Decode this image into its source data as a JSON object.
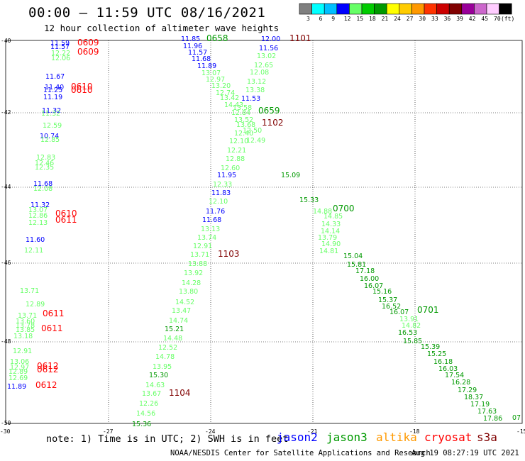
{
  "header": {
    "title": "00:00 – 11:59 UTC 08/16/2021",
    "subtitle": "12 hour collection of altimeter wave heights"
  },
  "colorbar": {
    "labels": [
      "3",
      "6",
      "9",
      "12",
      "15",
      "18",
      "21",
      "24",
      "27",
      "30",
      "33",
      "36",
      "39",
      "42",
      "45",
      "70",
      "(ft)"
    ],
    "colors": [
      "#7f7f7f",
      "#00ffff",
      "#00bfff",
      "#0000ff",
      "#66ff66",
      "#00cc00",
      "#009900",
      "#ffff00",
      "#ffcc00",
      "#ff9900",
      "#ff3300",
      "#cc0000",
      "#800000",
      "#990099",
      "#cc66cc",
      "#ffccff",
      "#000000"
    ]
  },
  "map": {
    "lat_labels": [
      "-40",
      "-42",
      "-44",
      "-46",
      "-48",
      "-50"
    ],
    "lon_labels": [
      "-30",
      "-27",
      "-24",
      "-21",
      "-18",
      "-15"
    ]
  },
  "observations": [
    {
      "text": "11.59",
      "color": "#0000ff"
    },
    {
      "text": "11.57",
      "color": "#0000ff"
    },
    {
      "text": "12.22",
      "color": "#66ff66"
    },
    {
      "text": "12.06",
      "color": "#66ff66"
    },
    {
      "text": "0609",
      "color": "#ff0000"
    },
    {
      "text": "0609",
      "color": "#ff0000"
    },
    {
      "text": "11.67",
      "color": "#0000ff"
    },
    {
      "text": "11.40",
      "color": "#0000ff"
    },
    {
      "text": "11.25",
      "color": "#0000ff"
    },
    {
      "text": "11.19",
      "color": "#0000ff"
    },
    {
      "text": "0610",
      "color": "#ff0000"
    },
    {
      "text": "0610",
      "color": "#ff0000"
    },
    {
      "text": "11.32",
      "color": "#0000ff"
    },
    {
      "text": "11.32",
      "color": "#66ff66"
    },
    {
      "text": "12.59",
      "color": "#66ff66"
    },
    {
      "text": "10.74",
      "color": "#0000ff"
    },
    {
      "text": "12.85",
      "color": "#66ff66"
    },
    {
      "text": "12.83",
      "color": "#66ff66"
    },
    {
      "text": "12.46",
      "color": "#66ff66"
    },
    {
      "text": "12.35",
      "color": "#66ff66"
    },
    {
      "text": "11.68",
      "color": "#0000ff"
    },
    {
      "text": "12.08",
      "color": "#66ff66"
    },
    {
      "text": "11.32",
      "color": "#0000ff"
    },
    {
      "text": "13.07",
      "color": "#66ff66"
    },
    {
      "text": "12.86",
      "color": "#66ff66"
    },
    {
      "text": "12.13",
      "color": "#66ff66"
    },
    {
      "text": "0610",
      "color": "#ff0000"
    },
    {
      "text": "0611",
      "color": "#ff0000"
    },
    {
      "text": "11.60",
      "color": "#0000ff"
    },
    {
      "text": "12.11",
      "color": "#66ff66"
    },
    {
      "text": "13.71",
      "color": "#66ff66"
    },
    {
      "text": "12.89",
      "color": "#66ff66"
    },
    {
      "text": "13.71",
      "color": "#66ff66"
    },
    {
      "text": "13.60",
      "color": "#66ff66"
    },
    {
      "text": "13.78",
      "color": "#66ff66"
    },
    {
      "text": "13.85",
      "color": "#66ff66"
    },
    {
      "text": "13.18",
      "color": "#66ff66"
    },
    {
      "text": "0611",
      "color": "#ff0000"
    },
    {
      "text": "0611",
      "color": "#ff0000"
    },
    {
      "text": "12.91",
      "color": "#66ff66"
    },
    {
      "text": "13.06",
      "color": "#66ff66"
    },
    {
      "text": "12.97",
      "color": "#66ff66"
    },
    {
      "text": "12.89",
      "color": "#66ff66"
    },
    {
      "text": "12.69",
      "color": "#66ff66"
    },
    {
      "text": "0612",
      "color": "#ff0000"
    },
    {
      "text": "0612",
      "color": "#ff0000"
    },
    {
      "text": "11.89",
      "color": "#0000ff"
    },
    {
      "text": "0612",
      "color": "#ff0000"
    },
    {
      "text": "11.85",
      "color": "#0000ff"
    },
    {
      "text": "0658",
      "color": "#009900"
    },
    {
      "text": "11.96",
      "color": "#0000ff"
    },
    {
      "text": "11.57",
      "color": "#0000ff"
    },
    {
      "text": "11.68",
      "color": "#0000ff"
    },
    {
      "text": "11.89",
      "color": "#0000ff"
    },
    {
      "text": "13.07",
      "color": "#66ff66"
    },
    {
      "text": "12.97",
      "color": "#66ff66"
    },
    {
      "text": "13.20",
      "color": "#66ff66"
    },
    {
      "text": "12.74",
      "color": "#66ff66"
    },
    {
      "text": "13.42",
      "color": "#66ff66"
    },
    {
      "text": "14.43",
      "color": "#66ff66"
    },
    {
      "text": "12.00",
      "color": "#0000ff"
    },
    {
      "text": "1101",
      "color": "#800000"
    },
    {
      "text": "11.56",
      "color": "#0000ff"
    },
    {
      "text": "13.02",
      "color": "#66ff66"
    },
    {
      "text": "12.65",
      "color": "#66ff66"
    },
    {
      "text": "12.08",
      "color": "#66ff66"
    },
    {
      "text": "13.12",
      "color": "#66ff66"
    },
    {
      "text": "13.38",
      "color": "#66ff66"
    },
    {
      "text": "11.53",
      "color": "#0000ff"
    },
    {
      "text": "13.58",
      "color": "#66ff66"
    },
    {
      "text": "12.84",
      "color": "#66ff66"
    },
    {
      "text": "13.52",
      "color": "#66ff66"
    },
    {
      "text": "0659",
      "color": "#009900"
    },
    {
      "text": "13.68",
      "color": "#66ff66"
    },
    {
      "text": "1102",
      "color": "#800000"
    },
    {
      "text": "12.40",
      "color": "#66ff66"
    },
    {
      "text": "12.50",
      "color": "#66ff66"
    },
    {
      "text": "12.10",
      "color": "#66ff66"
    },
    {
      "text": "12.49",
      "color": "#66ff66"
    },
    {
      "text": "12.21",
      "color": "#66ff66"
    },
    {
      "text": "12.88",
      "color": "#66ff66"
    },
    {
      "text": "12.60",
      "color": "#66ff66"
    },
    {
      "text": "11.95",
      "color": "#0000ff"
    },
    {
      "text": "12.33",
      "color": "#66ff66"
    },
    {
      "text": "11.83",
      "color": "#0000ff"
    },
    {
      "text": "12.10",
      "color": "#66ff66"
    },
    {
      "text": "11.76",
      "color": "#0000ff"
    },
    {
      "text": "11.68",
      "color": "#0000ff"
    },
    {
      "text": "13.13",
      "color": "#66ff66"
    },
    {
      "text": "13.74",
      "color": "#66ff66"
    },
    {
      "text": "12.91",
      "color": "#66ff66"
    },
    {
      "text": "13.71",
      "color": "#66ff66"
    },
    {
      "text": "1103",
      "color": "#800000"
    },
    {
      "text": "13.88",
      "color": "#66ff66"
    },
    {
      "text": "13.92",
      "color": "#66ff66"
    },
    {
      "text": "14.28",
      "color": "#66ff66"
    },
    {
      "text": "13.80",
      "color": "#66ff66"
    },
    {
      "text": "14.52",
      "color": "#66ff66"
    },
    {
      "text": "13.47",
      "color": "#66ff66"
    },
    {
      "text": "14.74",
      "color": "#66ff66"
    },
    {
      "text": "15.21",
      "color": "#009900"
    },
    {
      "text": "14.48",
      "color": "#66ff66"
    },
    {
      "text": "12.52",
      "color": "#66ff66"
    },
    {
      "text": "14.78",
      "color": "#66ff66"
    },
    {
      "text": "13.95",
      "color": "#66ff66"
    },
    {
      "text": "15.30",
      "color": "#009900"
    },
    {
      "text": "14.63",
      "color": "#66ff66"
    },
    {
      "text": "13.67",
      "color": "#66ff66"
    },
    {
      "text": "1104",
      "color": "#800000"
    },
    {
      "text": "12.26",
      "color": "#66ff66"
    },
    {
      "text": "14.56",
      "color": "#66ff66"
    },
    {
      "text": "15.36",
      "color": "#009900"
    },
    {
      "text": "15.09",
      "color": "#009900"
    },
    {
      "text": "15.33",
      "color": "#009900"
    },
    {
      "text": "14.88",
      "color": "#66ff66"
    },
    {
      "text": "0700",
      "color": "#009900"
    },
    {
      "text": "14.85",
      "color": "#66ff66"
    },
    {
      "text": "14.33",
      "color": "#66ff66"
    },
    {
      "text": "14.14",
      "color": "#66ff66"
    },
    {
      "text": "13.79",
      "color": "#66ff66"
    },
    {
      "text": "14.90",
      "color": "#66ff66"
    },
    {
      "text": "14.81",
      "color": "#66ff66"
    },
    {
      "text": "15.04",
      "color": "#009900"
    },
    {
      "text": "15.81",
      "color": "#009900"
    },
    {
      "text": "17.18",
      "color": "#009900"
    },
    {
      "text": "16.00",
      "color": "#009900"
    },
    {
      "text": "16.07",
      "color": "#009900"
    },
    {
      "text": "15.16",
      "color": "#009900"
    },
    {
      "text": "15.37",
      "color": "#009900"
    },
    {
      "text": "16.52",
      "color": "#009900"
    },
    {
      "text": "16.07",
      "color": "#009900"
    },
    {
      "text": "0701",
      "color": "#009900"
    },
    {
      "text": "13.91",
      "color": "#66ff66"
    },
    {
      "text": "14.82",
      "color": "#66ff66"
    },
    {
      "text": "16.53",
      "color": "#009900"
    },
    {
      "text": "15.85",
      "color": "#009900"
    },
    {
      "text": "15.39",
      "color": "#009900"
    },
    {
      "text": "15.25",
      "color": "#009900"
    },
    {
      "text": "16.18",
      "color": "#009900"
    },
    {
      "text": "16.03",
      "color": "#009900"
    },
    {
      "text": "17.54",
      "color": "#009900"
    },
    {
      "text": "16.28",
      "color": "#009900"
    },
    {
      "text": "17.29",
      "color": "#009900"
    },
    {
      "text": "18.37",
      "color": "#009900"
    },
    {
      "text": "17.19",
      "color": "#009900"
    },
    {
      "text": "17.63",
      "color": "#009900"
    },
    {
      "text": "17.86",
      "color": "#009900"
    },
    {
      "text": "07",
      "color": "#009900"
    }
  ],
  "legend": {
    "note": "note: 1) Time is in UTC; 2) SWH is in feet",
    "satellites": [
      {
        "name": "jason2",
        "color": "#0000ff"
      },
      {
        "name": "jason3",
        "color": "#009900"
      },
      {
        "name": "altika",
        "color": "#ff9900"
      },
      {
        "name": "cryosat",
        "color": "#ff0000"
      },
      {
        "name": "s3a",
        "color": "#800000"
      }
    ]
  },
  "footer": {
    "source": "NOAA/NESDIS Center for Satellite Applications and Research",
    "timestamp": "Aug 19 08:27:19 UTC 2021"
  }
}
